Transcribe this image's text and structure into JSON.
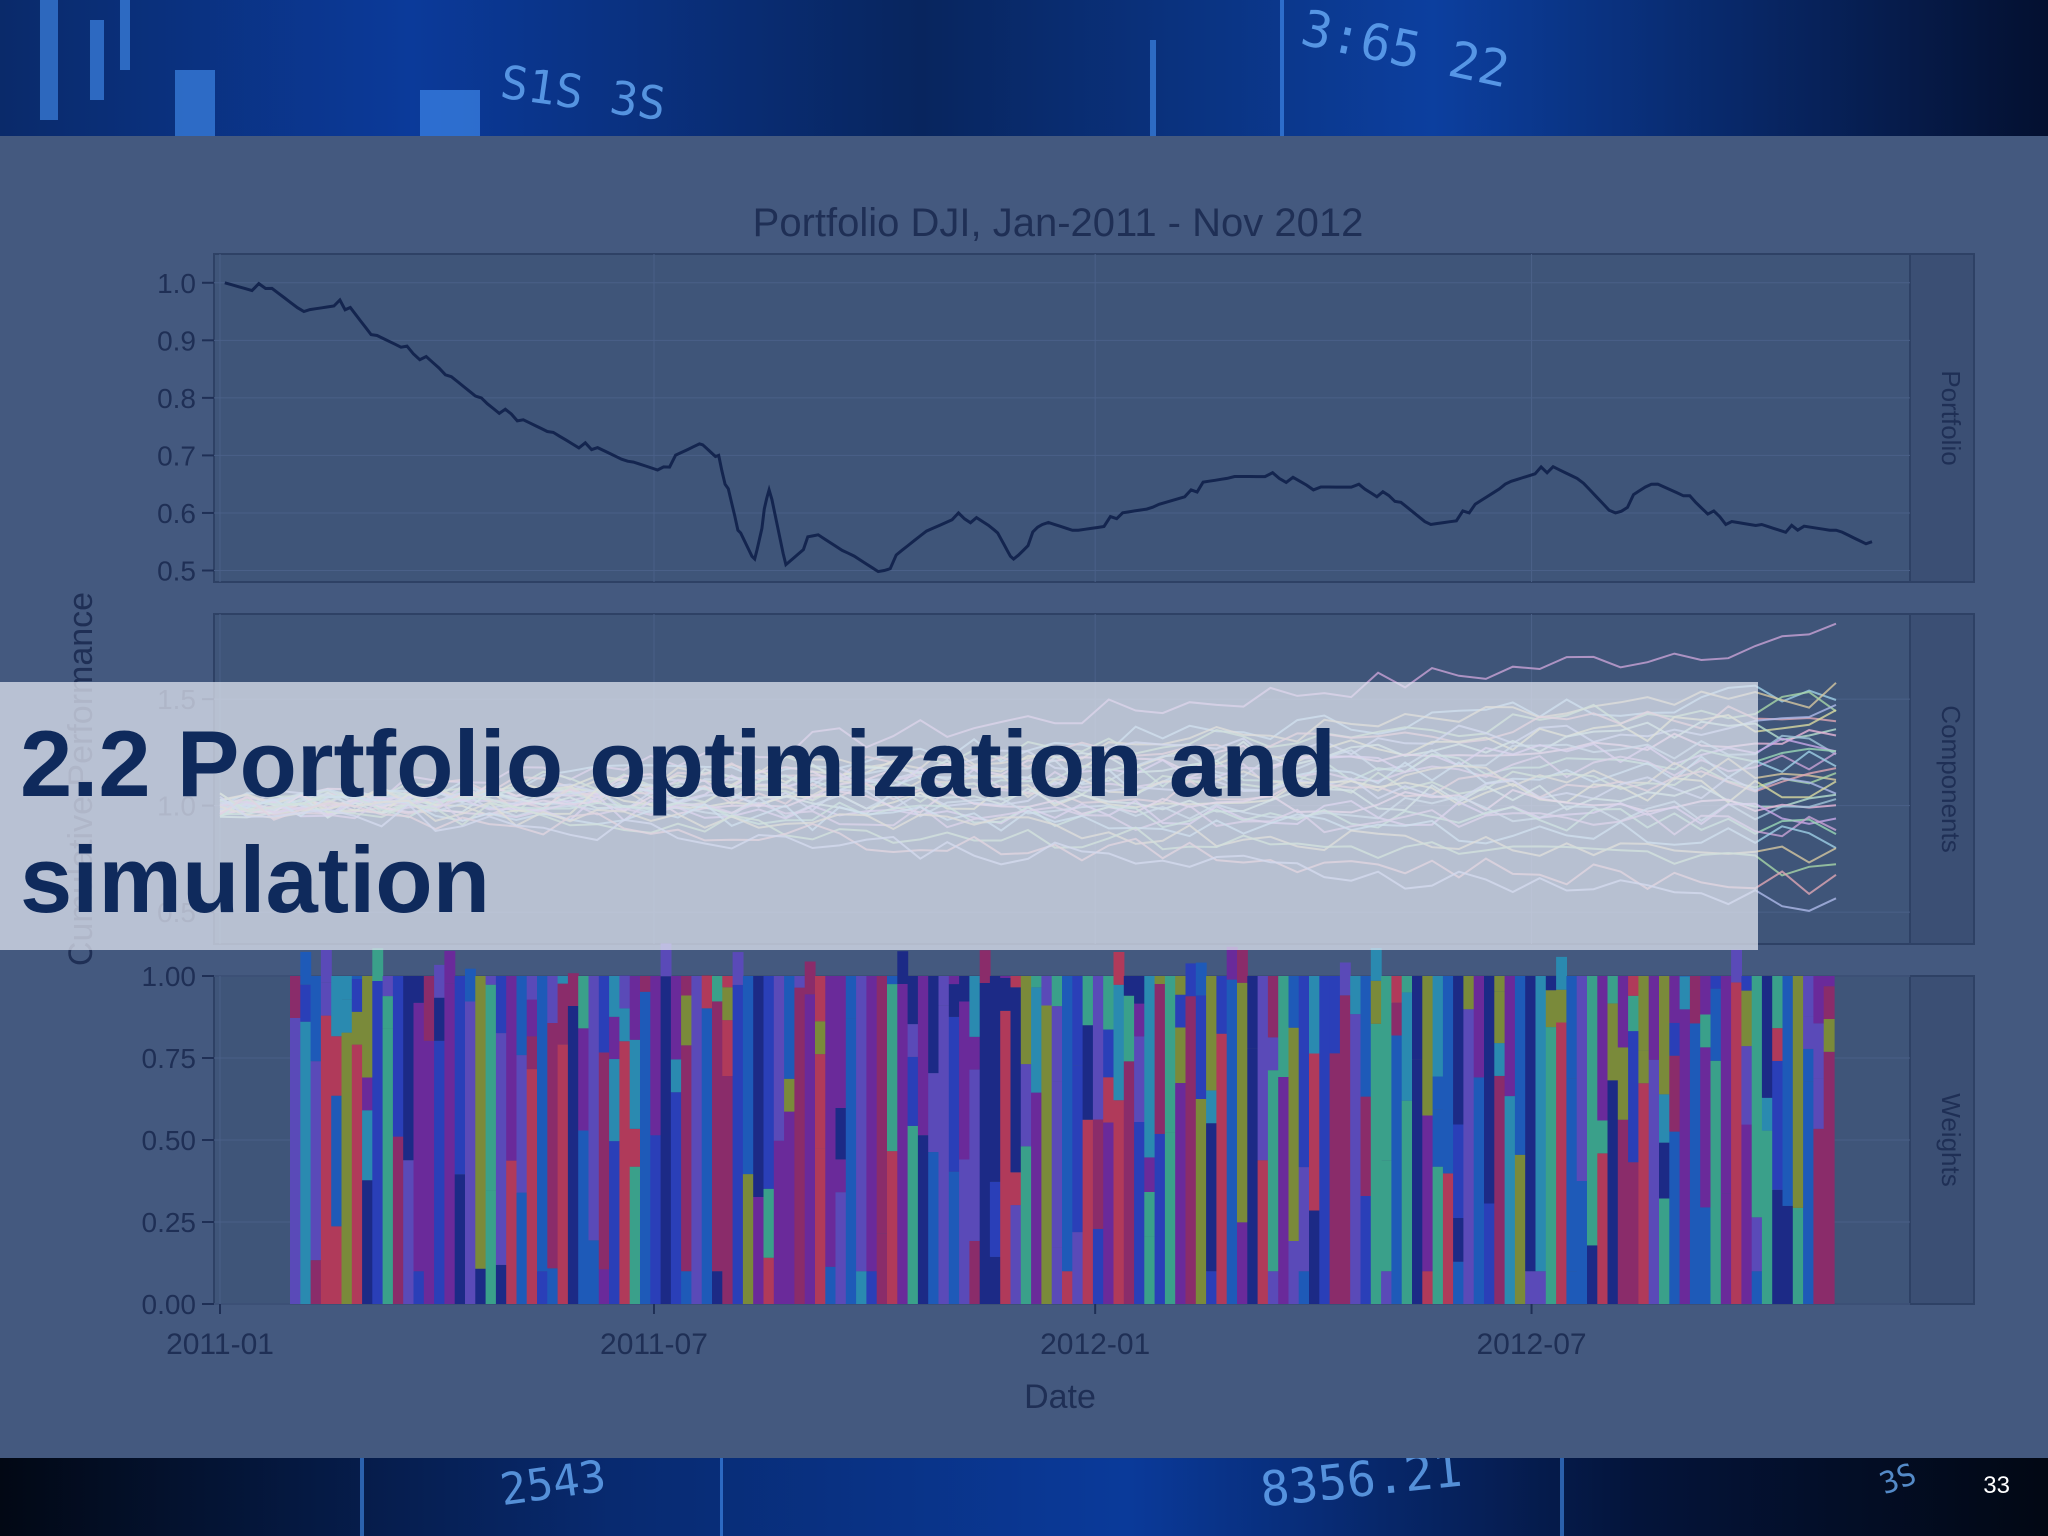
{
  "slide": {
    "title": "2.2 Portfolio optimization and simulation",
    "page_number": "33"
  },
  "background": {
    "tickers": [
      "S1S 3S",
      "3:65 22",
      "2543",
      "8356.21",
      "3S"
    ]
  },
  "colors": {
    "panel_bg": "#44597f",
    "plot_bg": "#3f5579",
    "strip_bg": "#3b4f74",
    "portfolio_line": "#14254f",
    "title_text": "#0f2a5c"
  },
  "chart_data": {
    "type": "line",
    "title": "Portfolio DJI, Jan-2011 - Nov 2012",
    "xlabel": "Date",
    "ylabel": "Cumulative Performance",
    "x_range": [
      "2011-01-01",
      "2012-11-30"
    ],
    "x_ticks": [
      "2011-01",
      "2011-07",
      "2012-01",
      "2012-07"
    ],
    "facets": [
      {
        "strip": "Portfolio",
        "ylim": [
          0.48,
          1.05
        ],
        "y_ticks": [
          "1.0",
          "0.9",
          "0.8",
          "0.7",
          "0.6",
          "0.5"
        ],
        "series": [
          {
            "name": "Portfolio",
            "points": [
              [
                "2011-01-03",
                1.0
              ],
              [
                "2011-01-20",
                0.99
              ],
              [
                "2011-02-05",
                0.95
              ],
              [
                "2011-02-20",
                0.97
              ],
              [
                "2011-03-05",
                0.91
              ],
              [
                "2011-03-20",
                0.89
              ],
              [
                "2011-04-05",
                0.84
              ],
              [
                "2011-04-20",
                0.8
              ],
              [
                "2011-05-05",
                0.76
              ],
              [
                "2011-05-20",
                0.74
              ],
              [
                "2011-06-05",
                0.71
              ],
              [
                "2011-06-20",
                0.69
              ],
              [
                "2011-07-05",
                0.68
              ],
              [
                "2011-07-20",
                0.72
              ],
              [
                "2011-07-28",
                0.7
              ],
              [
                "2011-08-05",
                0.57
              ],
              [
                "2011-08-12",
                0.52
              ],
              [
                "2011-08-18",
                0.64
              ],
              [
                "2011-08-25",
                0.51
              ],
              [
                "2011-09-05",
                0.56
              ],
              [
                "2011-09-20",
                0.53
              ],
              [
                "2011-10-05",
                0.5
              ],
              [
                "2011-10-20",
                0.56
              ],
              [
                "2011-11-05",
                0.6
              ],
              [
                "2011-11-20",
                0.57
              ],
              [
                "2011-11-28",
                0.52
              ],
              [
                "2011-12-10",
                0.58
              ],
              [
                "2011-12-25",
                0.57
              ],
              [
                "2012-01-10",
                0.59
              ],
              [
                "2012-01-25",
                0.61
              ],
              [
                "2012-02-10",
                0.64
              ],
              [
                "2012-02-25",
                0.66
              ],
              [
                "2012-03-15",
                0.67
              ],
              [
                "2012-04-01",
                0.64
              ],
              [
                "2012-04-20",
                0.65
              ],
              [
                "2012-05-05",
                0.62
              ],
              [
                "2012-05-20",
                0.58
              ],
              [
                "2012-06-05",
                0.6
              ],
              [
                "2012-06-20",
                0.65
              ],
              [
                "2012-07-05",
                0.68
              ],
              [
                "2012-07-20",
                0.66
              ],
              [
                "2012-08-05",
                0.6
              ],
              [
                "2012-08-20",
                0.65
              ],
              [
                "2012-09-05",
                0.63
              ],
              [
                "2012-09-20",
                0.58
              ],
              [
                "2012-10-05",
                0.58
              ],
              [
                "2012-10-20",
                0.57
              ],
              [
                "2012-11-05",
                0.57
              ],
              [
                "2012-11-20",
                0.55
              ]
            ]
          }
        ]
      },
      {
        "strip": "Components",
        "ylim": [
          0.35,
          1.9
        ],
        "y_ticks": [
          "1.5",
          "1.0",
          "0.5"
        ],
        "series_count": 30
      },
      {
        "strip": "Weights",
        "ylim": [
          0,
          1
        ],
        "y_ticks": [
          "1.00",
          "0.75",
          "0.50",
          "0.25",
          "0.00"
        ],
        "type": "stacked-bar"
      }
    ]
  }
}
